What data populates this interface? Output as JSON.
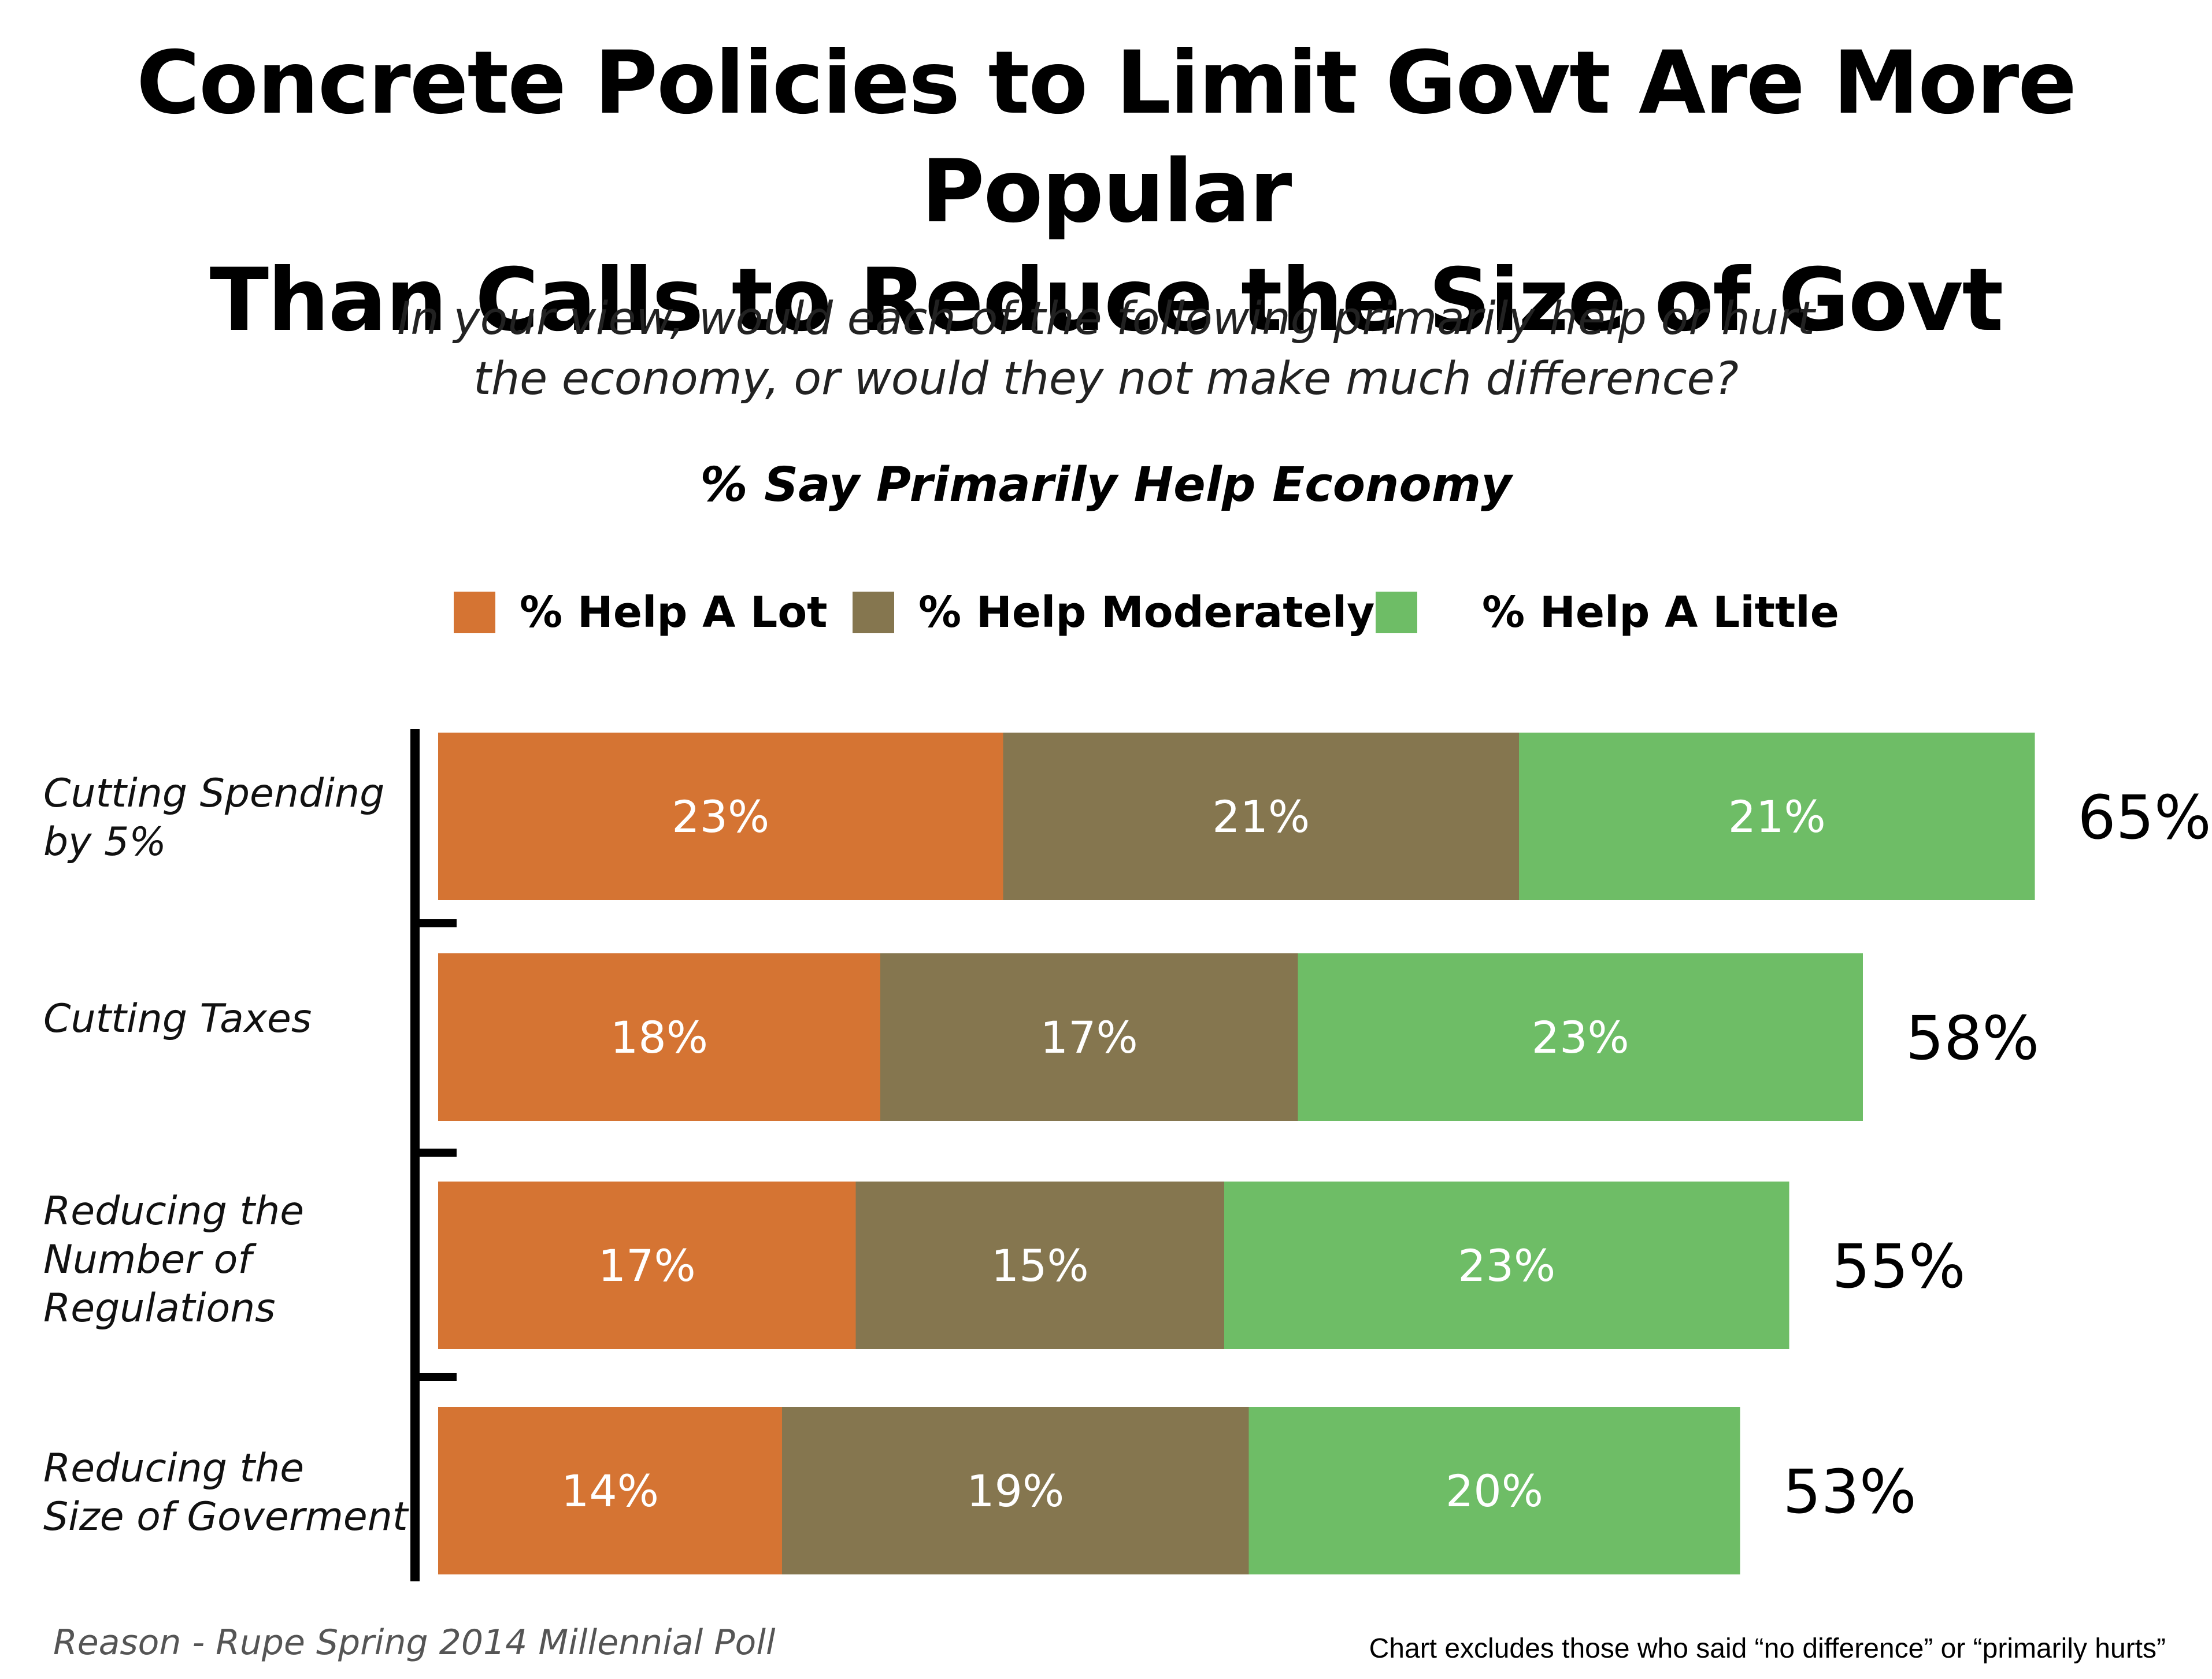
{
  "title_lines": [
    "Concrete Policies to Limit Govt Are More Popular",
    "Than Calls to Reduce the Size of Govt"
  ],
  "subtitle_lines": [
    "In your view, would each of the following primarily help or hurt",
    "the economy, or would they not make much difference?"
  ],
  "footer": {
    "source": "Reason - Rupe Spring 2014 Millennial Poll",
    "note": "Chart excludes those who said “no difference” or “primarily hurts”"
  },
  "chart_data": {
    "type": "bar",
    "orientation": "horizontal",
    "stacked": true,
    "title": "% Say Primarily Help Economy",
    "categories": [
      "Cutting Spending\nby 5%",
      "Cutting Taxes",
      "Reducing the\nNumber of\nRegulations",
      "Reducing the\nSize of Goverment"
    ],
    "series": [
      {
        "name": "% Help A Lot",
        "color": "#d57433",
        "values": [
          23,
          18,
          17,
          14
        ]
      },
      {
        "name": "% Help Moderately",
        "color": "#85764f",
        "values": [
          21,
          17,
          15,
          19
        ]
      },
      {
        "name": "% Help A Little",
        "color": "#6ebd66",
        "values": [
          21,
          23,
          23,
          20
        ]
      }
    ],
    "value_labels": [
      [
        "23%",
        "21%",
        "21%"
      ],
      [
        "18%",
        "17%",
        "23%"
      ],
      [
        "17%",
        "15%",
        "23%"
      ],
      [
        "14%",
        "19%",
        "20%"
      ]
    ],
    "totals": [
      65,
      58,
      55,
      53
    ],
    "total_labels": [
      "65%",
      "58%",
      "55%",
      "53%"
    ],
    "legend_position": "top",
    "xlim": [
      0,
      65
    ],
    "grid": false
  }
}
